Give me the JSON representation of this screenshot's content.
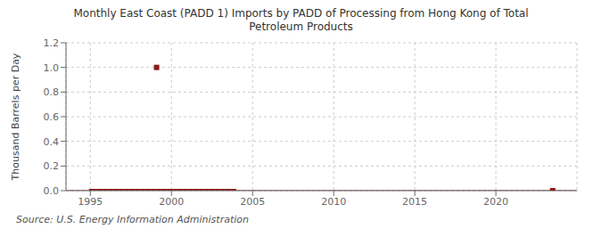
{
  "chart_data": {
    "type": "line",
    "title": "Monthly East Coast (PADD 1) Imports by PADD of Processing from Hong Kong of Total\nPetroleum Products",
    "ylabel": "Thousand Barrels per Day",
    "annotation": "Source: U.S. Energy Information Administration",
    "xlim": [
      1993.5,
      2025.0
    ],
    "ylim": [
      0.0,
      1.2
    ],
    "xticks": [
      1995,
      2000,
      2005,
      2010,
      2015,
      2020
    ],
    "yticks": [
      {
        "value": 0.0,
        "label": "0.0"
      },
      0.2,
      0.4,
      0.6,
      0.8,
      {
        "value": 1.0,
        "label": "1.0"
      },
      1.2
    ],
    "grid": true,
    "series": [
      {
        "type": "line",
        "color": "#8b1a1a",
        "line_style": "solid",
        "x": [
          1993.583,
          2024.917
        ],
        "values": [
          0,
          0
        ]
      },
      {
        "type": "line",
        "color": "#8b1a1a",
        "line_style": "thick",
        "x": [
          1994.917,
          2004.0
        ],
        "values": [
          0,
          0
        ]
      },
      {
        "type": "scatter",
        "color": "#8b1a1a",
        "marker": "square",
        "x": [
          1999.083
        ],
        "values": [
          1.0
        ]
      },
      {
        "type": "scatter",
        "color": "#8b1a1a",
        "marker": "square",
        "x": [
          2023.5
        ],
        "values": [
          0.0
        ]
      }
    ]
  }
}
